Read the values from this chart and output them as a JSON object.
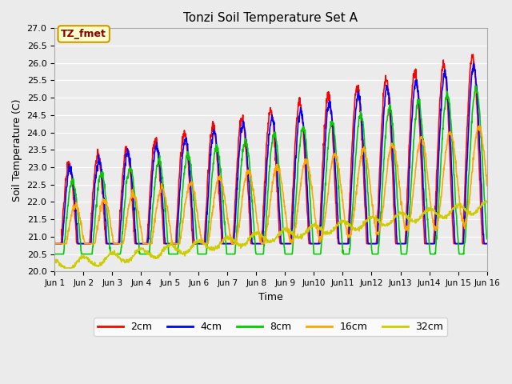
{
  "title": "Tonzi Soil Temperature Set A",
  "xlabel": "Time",
  "ylabel": "Soil Temperature (C)",
  "annotation": "TZ_fmet",
  "ylim": [
    20.0,
    27.0
  ],
  "colors": {
    "2cm": "#FF0000",
    "4cm": "#0000FF",
    "8cm": "#00CC00",
    "16cm": "#FFA500",
    "32cm": "#CCCC00"
  },
  "legend_labels": [
    "2cm",
    "4cm",
    "8cm",
    "16cm",
    "32cm"
  ],
  "background_color": "#EBEBEB",
  "annotation_bg": "#FFFFCC",
  "annotation_border": "#CC9900",
  "annotation_text_color": "#8B0000",
  "n_points": 1440,
  "days": 15
}
